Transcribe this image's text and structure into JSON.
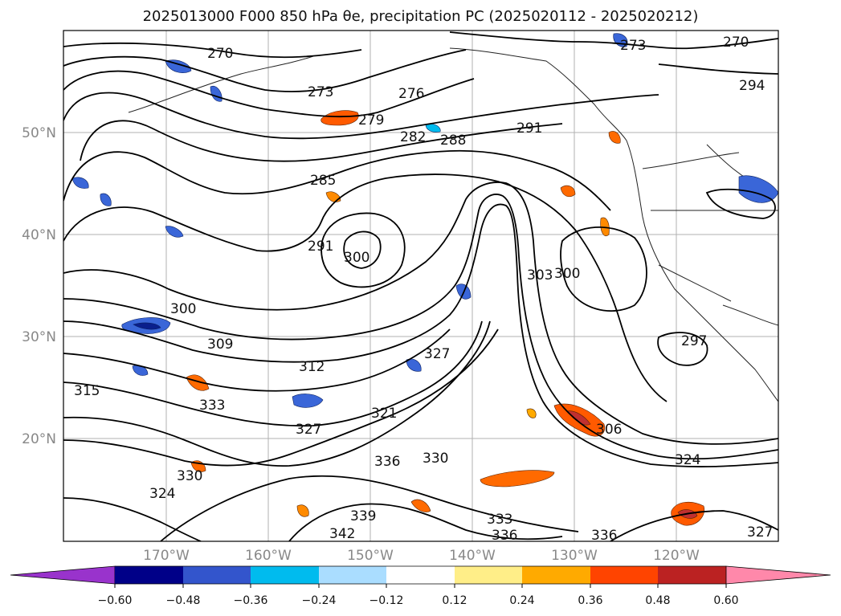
{
  "title": "2025013000 F000 850 hPa θe, precipitation PC (2025020112 - 2025020212)",
  "lat_ticks": [
    "50°N",
    "40°N",
    "30°N",
    "20°N"
  ],
  "lon_ticks": [
    "170°W",
    "160°W",
    "150°W",
    "140°W",
    "130°W",
    "120°W"
  ],
  "colorbar": {
    "ticks": [
      "−0.60",
      "−0.48",
      "−0.36",
      "−0.24",
      "−0.12",
      "0.12",
      "0.24",
      "0.36",
      "0.48",
      "0.60"
    ],
    "colors": [
      "#9933cc",
      "#000088",
      "#3355cc",
      "#00bbee",
      "#aaddff",
      "#ffffff",
      "#ffee88",
      "#ffaa00",
      "#ff4400",
      "#bb2222",
      "#ff88aa"
    ]
  },
  "contour_labels": [
    "270",
    "270",
    "273",
    "273",
    "276",
    "279",
    "282",
    "285",
    "288",
    "291",
    "291",
    "294",
    "297",
    "300",
    "300",
    "300",
    "303",
    "306",
    "309",
    "312",
    "315",
    "321",
    "324",
    "324",
    "327",
    "327",
    "327",
    "330",
    "330",
    "333",
    "333",
    "336",
    "336",
    "336",
    "339",
    "342"
  ]
}
